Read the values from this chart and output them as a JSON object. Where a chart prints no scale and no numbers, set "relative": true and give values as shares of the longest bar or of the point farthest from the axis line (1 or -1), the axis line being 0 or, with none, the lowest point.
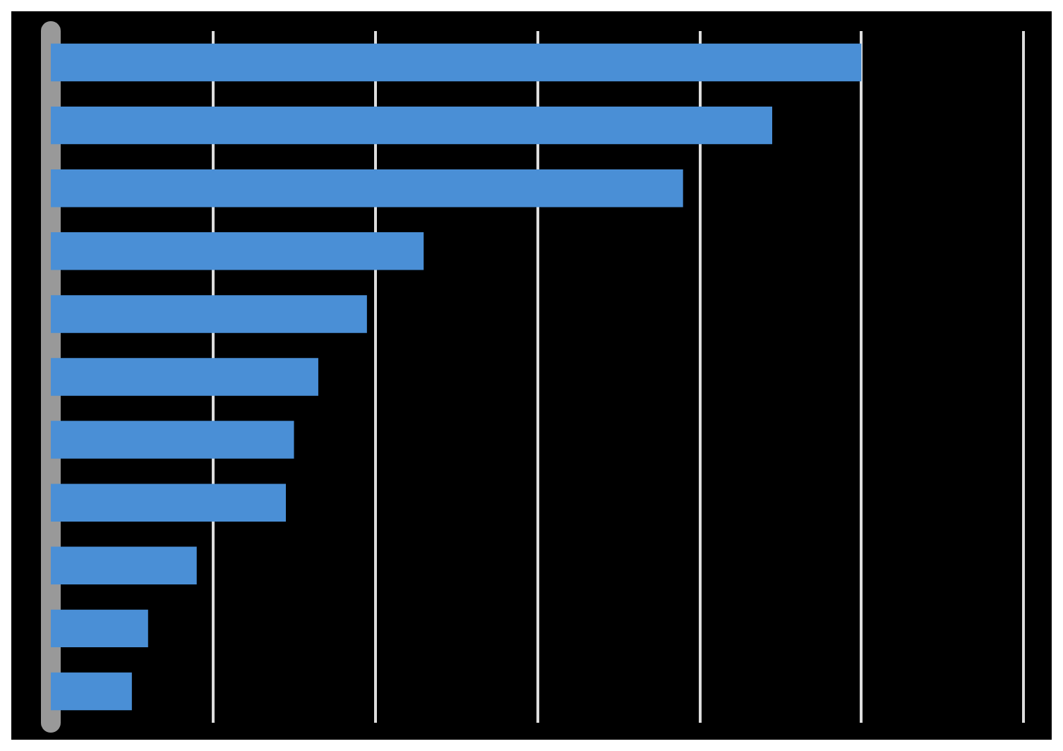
{
  "chart_data": {
    "type": "bar",
    "orientation": "horizontal",
    "relative": true,
    "categories": [
      null,
      null,
      null,
      null,
      null,
      null,
      null,
      null,
      null,
      null,
      null
    ],
    "values": [
      1,
      0.89,
      0.78,
      0.46,
      0.39,
      0.33,
      0.3,
      0.29,
      0.18,
      0.12,
      0.1
    ],
    "color": "#4a8fd6",
    "grid": "x"
  }
}
